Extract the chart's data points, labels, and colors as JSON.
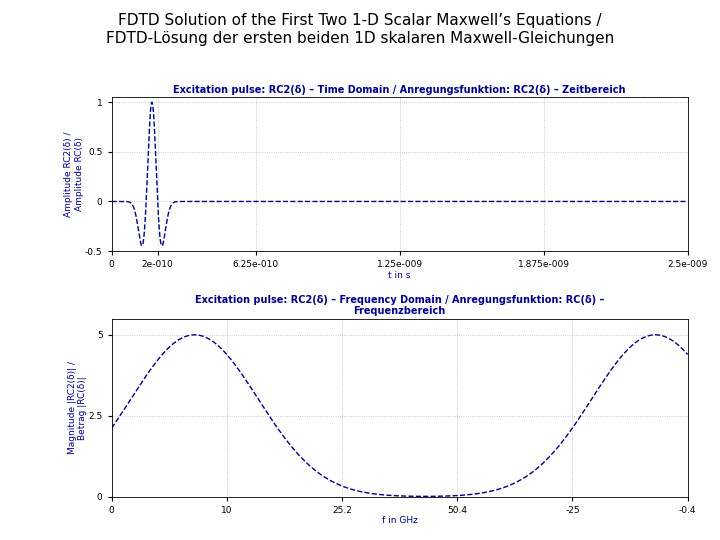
{
  "title_line1": "FDTD Solution of the First Two 1-D Scalar Maxwell’s Equations /",
  "title_line2": "FDTD-Lösung der ersten beiden 1D skalaren Maxwell-Gleichungen",
  "title_color": "#000000",
  "title_fontsize": 11,
  "subplot1_title": "Excitation pulse: RC2(δ) – Time Domain / Anregungsfunktion: RC2(δ) – Zeitbereich",
  "subplot1_ylabel": "Amplitude RC2(δ) /\nAmplitude RC(δ)",
  "subplot1_xlabel": "t in s",
  "subplot1_xlim": [
    0,
    2.5e-09
  ],
  "subplot1_ylim": [
    -0.5,
    1.05
  ],
  "subplot1_xticks": [
    0,
    2e-10,
    6.25e-10,
    1.25e-09,
    1.875e-09,
    2.5e-09
  ],
  "subplot1_xtick_labels": [
    "0",
    "2e-010",
    "6.25e-010",
    "1.25e-009",
    "1.875e-009",
    "2.5e-009"
  ],
  "subplot1_yticks": [
    -0.5,
    0,
    0.5,
    1.0
  ],
  "subplot1_ytick_labels": [
    "-0.5",
    "0",
    "0.5",
    "1"
  ],
  "subplot2_title": "Excitation pulse: RC2(δ) – Frequency Domain / Anregungsfunktion: RC(δ) –\nFrequenzbereich",
  "subplot2_ylabel": "Magnitude |RC2(δ)| /\nBetrag |RC(δ)|",
  "subplot2_xlabel": "f in GHz",
  "subplot2_ylim": [
    0,
    5.5
  ],
  "subplot2_yticks": [
    0,
    2.5,
    5
  ],
  "subplot2_ytick_labels": [
    "0",
    "2.5",
    "5"
  ],
  "subplot2_xtick_labels": [
    "0",
    "10",
    "25.2",
    "50.4",
    "-25",
    "-0.4"
  ],
  "line_color": "#00008B",
  "line_style": "--",
  "line_width": 1.0,
  "bg_color": "#ffffff",
  "grid_color": "#bbbbbb",
  "grid_style": ":",
  "axes_label_color": "#00008B",
  "axes_label_fontsize": 6.5,
  "tick_fontsize": 6.5,
  "subplot_title_fontsize": 7,
  "subplot_title_fontweight": "bold",
  "subplot_title_color": "#00008B"
}
